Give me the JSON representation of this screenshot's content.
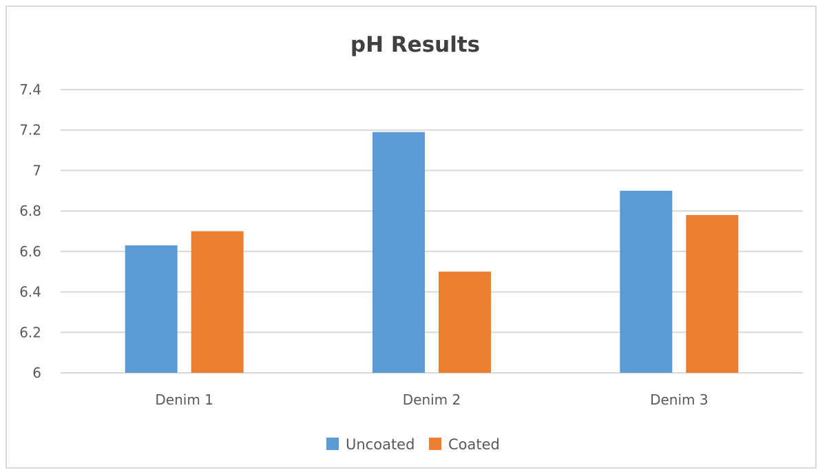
{
  "chart_data": {
    "type": "bar",
    "title": "pH Results",
    "categories": [
      "Denim 1",
      "Denim 2",
      "Denim 3"
    ],
    "series": [
      {
        "name": "Uncoated",
        "values": [
          6.63,
          7.19,
          6.9
        ],
        "color": "#5b9bd5"
      },
      {
        "name": "Coated",
        "values": [
          6.7,
          6.5,
          6.78
        ],
        "color": "#ed7d31"
      }
    ],
    "yticks": [
      "6",
      "6.2",
      "6.4",
      "6.6",
      "6.8",
      "7",
      "7.2",
      "7.4"
    ],
    "ylim": [
      6,
      7.4
    ],
    "grid": true,
    "legend_position": "bottom"
  }
}
